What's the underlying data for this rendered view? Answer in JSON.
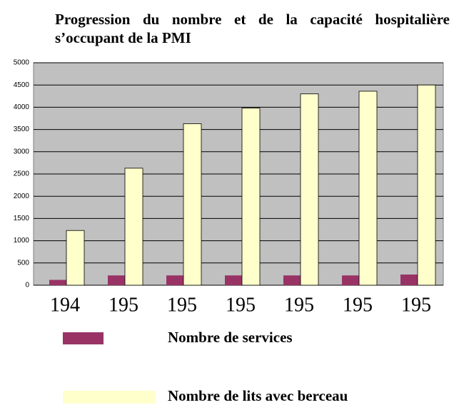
{
  "chart_data": {
    "type": "bar",
    "title": "Progression du nombre et de la capacité hospitalière s’occupant de la PMI",
    "categories": [
      "194",
      "195",
      "195",
      "195",
      "195",
      "195",
      "195"
    ],
    "series": [
      {
        "name": "Nombre de services",
        "color": "#993366",
        "values": [
          120,
          220,
          220,
          220,
          220,
          220,
          240
        ]
      },
      {
        "name": "Nombre de lits avec berceau",
        "color": "#ffffcc",
        "values": [
          1230,
          2630,
          3630,
          3980,
          4300,
          4360,
          4500
        ]
      }
    ],
    "ylim": [
      0,
      5000
    ],
    "yticks": [
      0,
      500,
      1000,
      1500,
      2000,
      2500,
      3000,
      3500,
      4000,
      4500,
      5000
    ],
    "grid": true,
    "legend": "bottom"
  }
}
